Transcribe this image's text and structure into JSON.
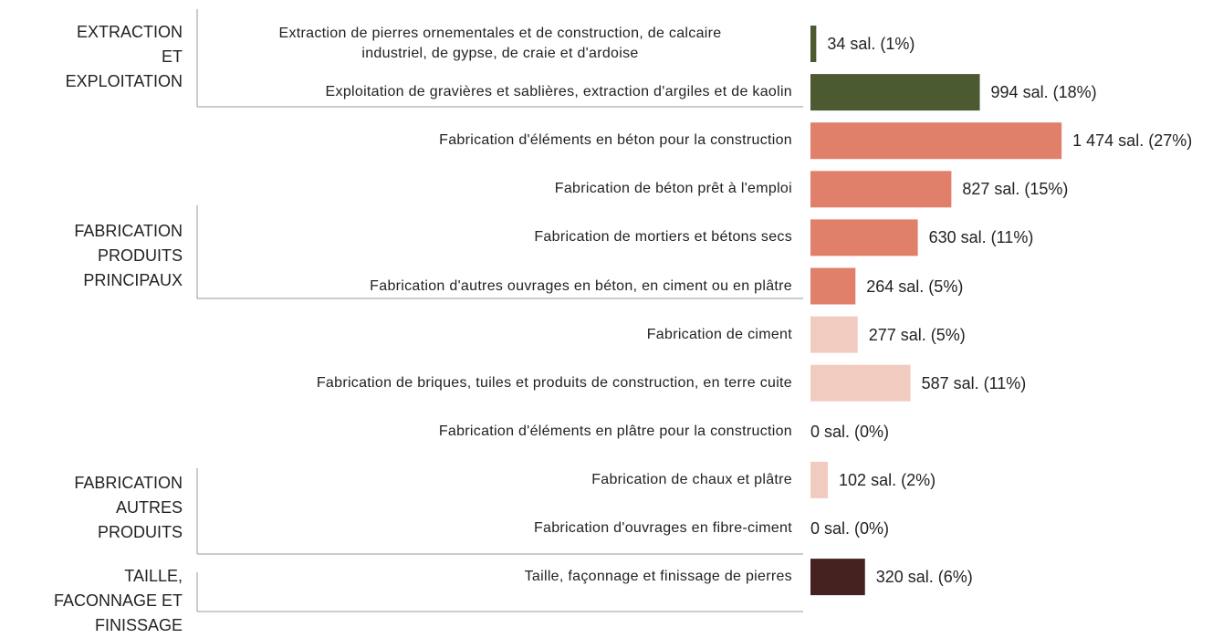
{
  "chart_data": {
    "type": "bar",
    "orientation": "horizontal",
    "xlim": [
      0,
      1500
    ],
    "groups": [
      {
        "label": "EXTRACTION\nET\nEXPLOITATION",
        "color": "#4b5a30",
        "categories": [
          "Extraction de pierres ornementales et de construction, de calcaire\nindustriel, de gypse, de craie et d'ardoise",
          "Exploitation de gravières et sablières, extraction d'argiles et de kaolin"
        ],
        "values": [
          34,
          994
        ],
        "value_labels": [
          "34 sal. (1%)",
          "994 sal. (18%)"
        ]
      },
      {
        "label": "FABRICATION\nPRODUITS\nPRINCIPAUX",
        "color": "#e07f6a",
        "categories": [
          "Fabrication d'éléments en béton pour la construction",
          "Fabrication de béton prêt à l'emploi",
          "Fabrication de mortiers et bétons secs",
          "Fabrication d'autres ouvrages en béton, en ciment ou en plâtre"
        ],
        "values": [
          1474,
          827,
          630,
          264
        ],
        "value_labels": [
          "1 474 sal. (27%)",
          "827 sal. (15%)",
          "630 sal. (11%)",
          "264 sal. (5%)"
        ]
      },
      {
        "label": "FABRICATION\nAUTRES\nPRODUITS",
        "color": "#f2cbc0",
        "categories": [
          "Fabrication de ciment",
          "Fabrication de briques, tuiles et produits de construction, en terre cuite",
          "Fabrication d'éléments en plâtre pour la construction",
          "Fabrication de chaux et plâtre",
          "Fabrication d'ouvrages en fibre-ciment"
        ],
        "values": [
          277,
          587,
          0,
          102,
          0
        ],
        "value_labels": [
          "277 sal. (5%)",
          "587 sal. (11%)",
          "0 sal. (0%)",
          "102 sal. (2%)",
          "0 sal. (0%)"
        ]
      },
      {
        "label": "TAILLE,\nFACONNAGE ET\nFINISSAGE",
        "color": "#45221f",
        "categories": [
          "Taille, façonnage et finissage de pierres"
        ],
        "values": [
          320
        ],
        "value_labels": [
          "320 sal. (6%)"
        ]
      }
    ]
  }
}
